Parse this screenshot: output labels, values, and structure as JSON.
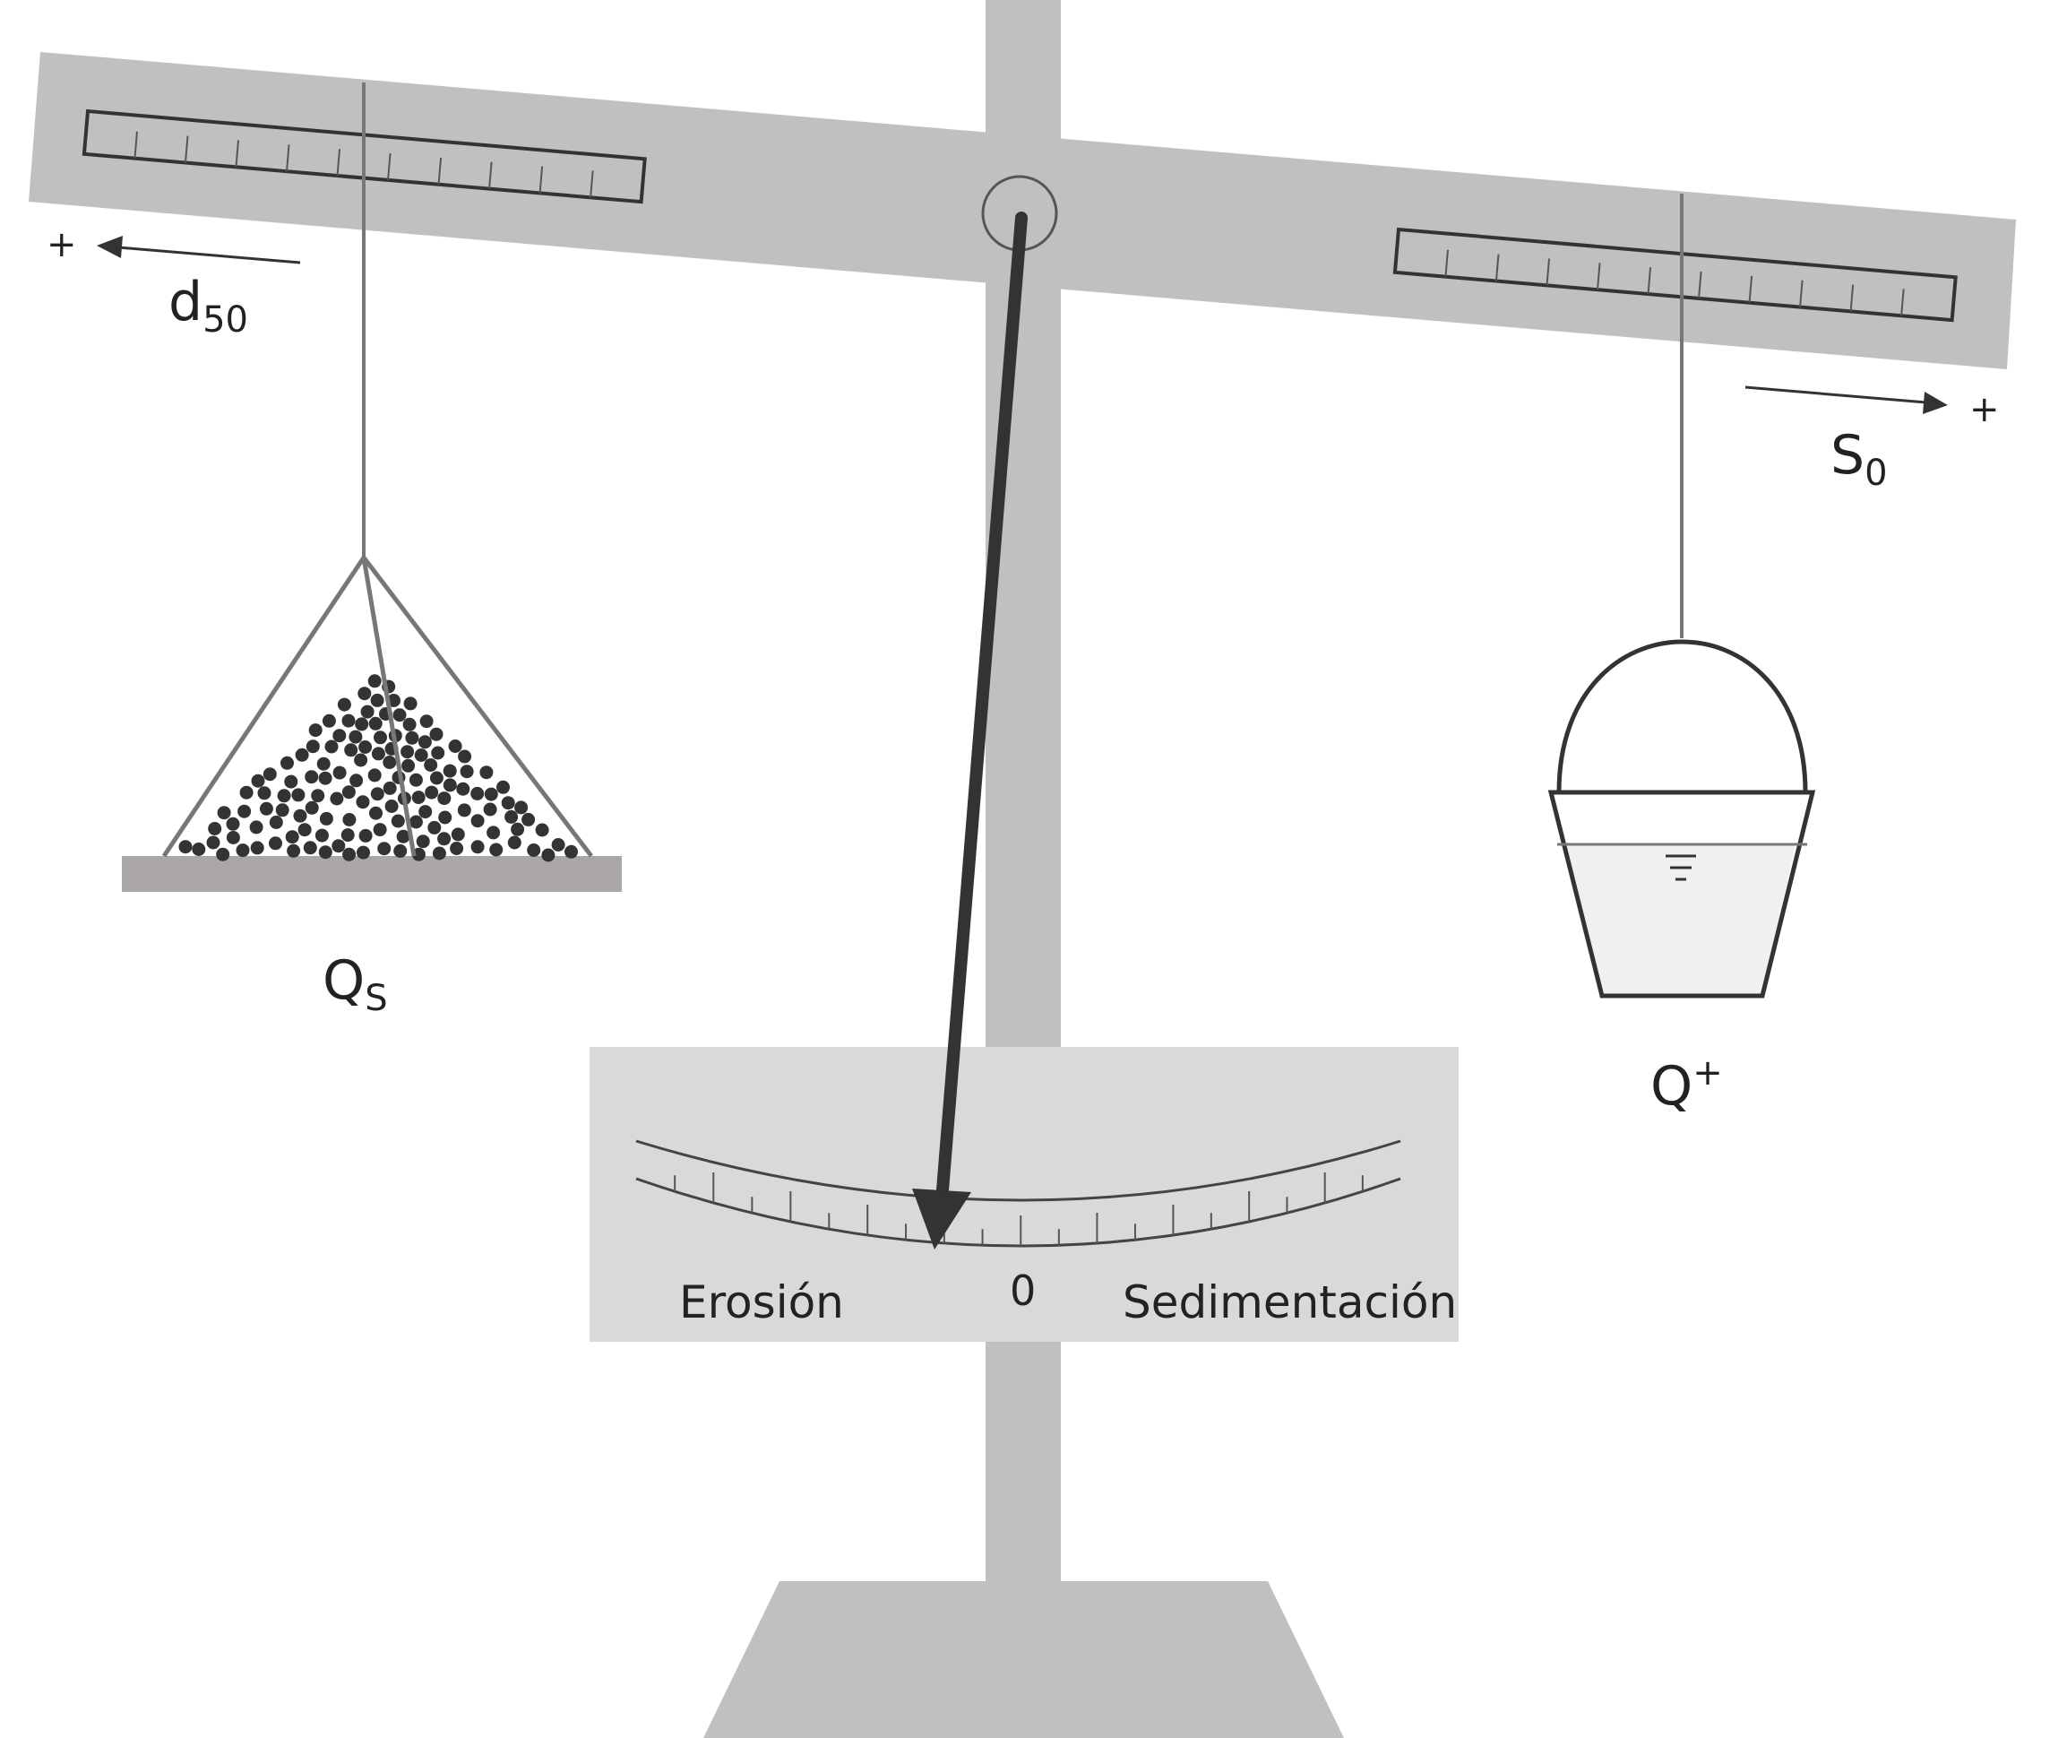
{
  "colors": {
    "frame": "#c0c0c0",
    "gauge_panel": "#d9d9d9",
    "pointer": "#333333",
    "line_gray": "#777777",
    "sediment": "#333333",
    "base_tray": "#aba7a7",
    "water": "#f0f0f0",
    "outline": "#333333"
  },
  "left_arm": {
    "variable": "d",
    "variable_subscript": "50",
    "direction_sign": "+",
    "load_label": "Q",
    "load_subscript": "S",
    "load_icon": "sediment-pile-icon"
  },
  "right_arm": {
    "variable": "S",
    "variable_subscript": "0",
    "direction_sign": "+",
    "load_label": "Q",
    "load_superscript": "+",
    "load_icon": "water-bucket-icon"
  },
  "gauge": {
    "left_label": "Erosión",
    "center_label": "0",
    "right_label": "Sedimentación"
  }
}
